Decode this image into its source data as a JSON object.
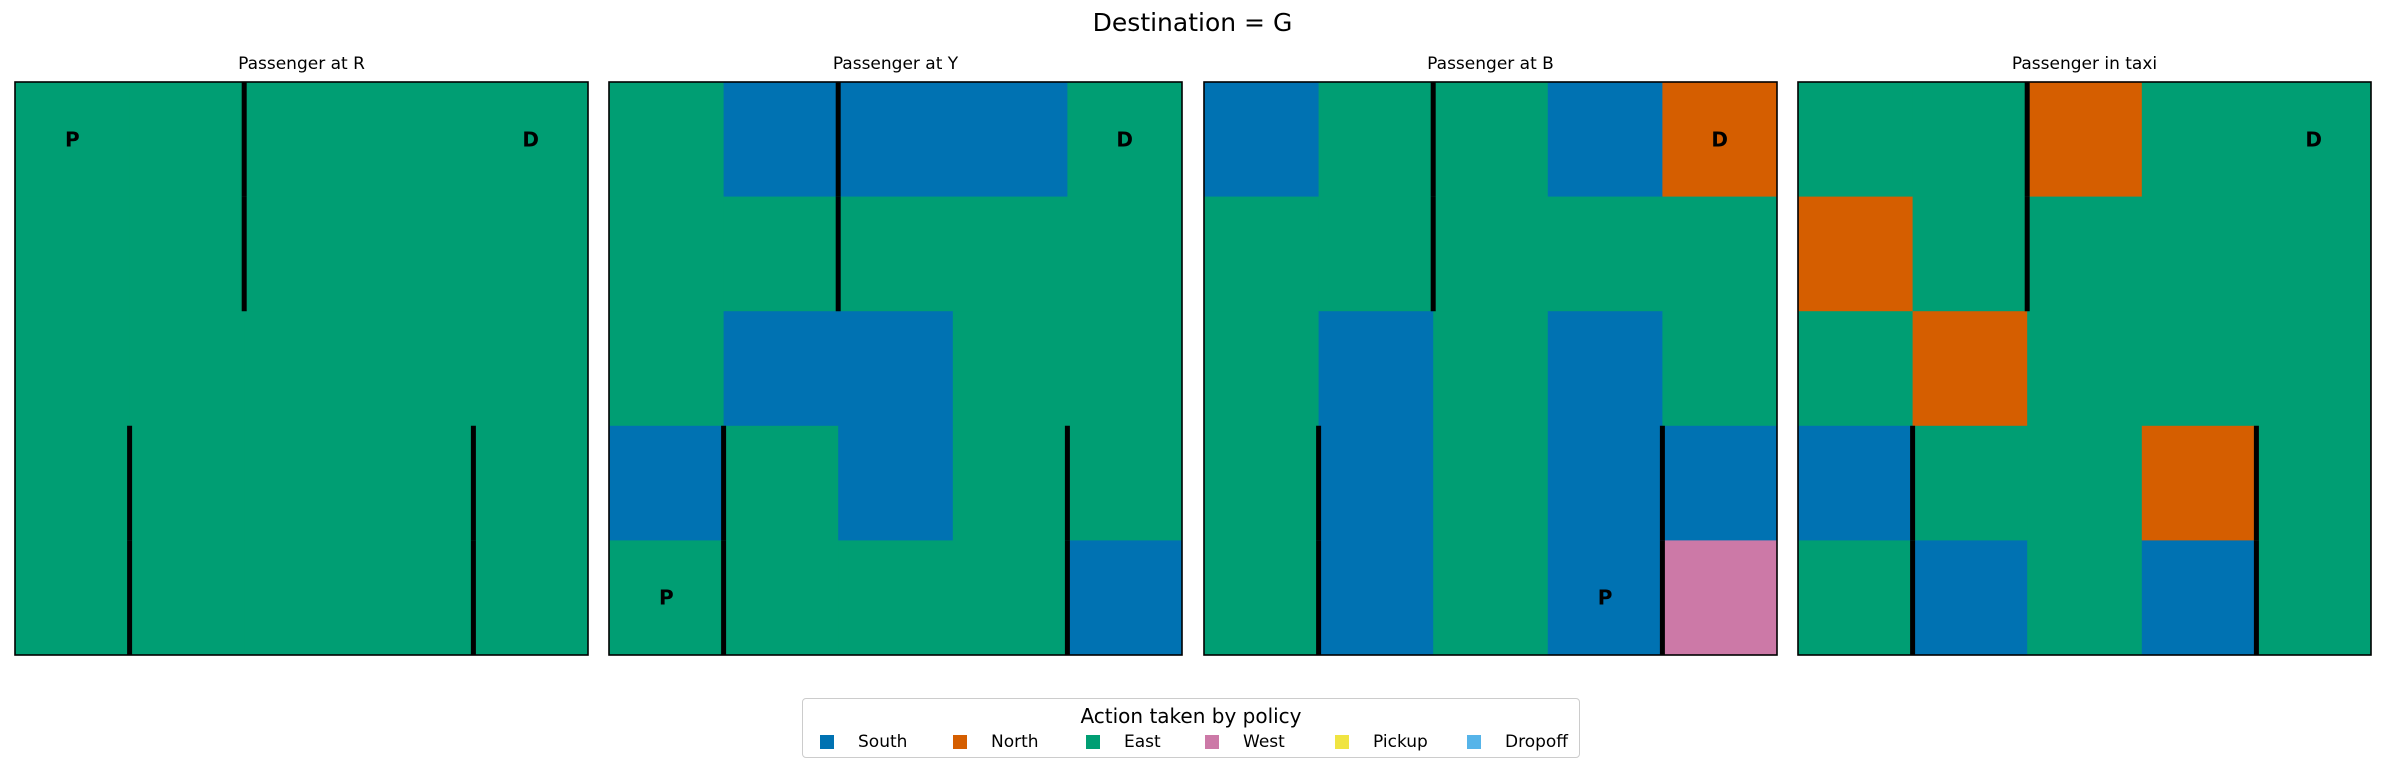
{
  "chart_data": {
    "type": "heatmap",
    "title": "Destination = G",
    "rows": 5,
    "cols": 5,
    "action_colors": {
      "South": "#0072b2",
      "North": "#d55e00",
      "East": "#009e73",
      "West": "#cc79a7",
      "Pickup": "#f0e442",
      "Dropoff": "#56b4e9"
    },
    "legend": {
      "title": "Action taken by policy",
      "placement": "lower center",
      "items": [
        "South",
        "North",
        "East",
        "West",
        "Pickup",
        "Dropoff"
      ]
    },
    "walls": [
      [
        0,
        1
      ],
      [
        1,
        1
      ],
      [
        3,
        0
      ],
      [
        4,
        0
      ],
      [
        3,
        3
      ],
      [
        4,
        3
      ]
    ],
    "panels": [
      {
        "title": "Passenger at R",
        "grid": [
          [
            "East",
            "East",
            "East",
            "East",
            "East"
          ],
          [
            "East",
            "East",
            "East",
            "East",
            "East"
          ],
          [
            "East",
            "East",
            "East",
            "East",
            "East"
          ],
          [
            "East",
            "East",
            "East",
            "East",
            "East"
          ],
          [
            "East",
            "East",
            "East",
            "East",
            "East"
          ]
        ],
        "markers": [
          {
            "label": "P",
            "row": 0,
            "col": 0
          },
          {
            "label": "D",
            "row": 0,
            "col": 4
          }
        ]
      },
      {
        "title": "Passenger at Y",
        "grid": [
          [
            "East",
            "South",
            "South",
            "South",
            "East"
          ],
          [
            "East",
            "East",
            "East",
            "East",
            "East"
          ],
          [
            "East",
            "South",
            "South",
            "East",
            "East"
          ],
          [
            "South",
            "East",
            "South",
            "East",
            "East"
          ],
          [
            "East",
            "East",
            "East",
            "East",
            "South"
          ]
        ],
        "markers": [
          {
            "label": "P",
            "row": 4,
            "col": 0
          },
          {
            "label": "D",
            "row": 0,
            "col": 4
          }
        ]
      },
      {
        "title": "Passenger at B",
        "grid": [
          [
            "South",
            "East",
            "East",
            "South",
            "North"
          ],
          [
            "East",
            "East",
            "East",
            "East",
            "East"
          ],
          [
            "East",
            "South",
            "East",
            "South",
            "East"
          ],
          [
            "East",
            "South",
            "East",
            "South",
            "South"
          ],
          [
            "East",
            "South",
            "East",
            "South",
            "West"
          ]
        ],
        "markers": [
          {
            "label": "P",
            "row": 4,
            "col": 3
          },
          {
            "label": "D",
            "row": 0,
            "col": 4
          }
        ]
      },
      {
        "title": "Passenger in taxi",
        "grid": [
          [
            "East",
            "East",
            "North",
            "East",
            "East"
          ],
          [
            "North",
            "East",
            "East",
            "East",
            "East"
          ],
          [
            "East",
            "North",
            "East",
            "East",
            "East"
          ],
          [
            "South",
            "East",
            "East",
            "North",
            "East"
          ],
          [
            "East",
            "South",
            "East",
            "South",
            "East"
          ]
        ],
        "markers": [
          {
            "label": "D",
            "row": 0,
            "col": 4
          }
        ]
      }
    ]
  }
}
